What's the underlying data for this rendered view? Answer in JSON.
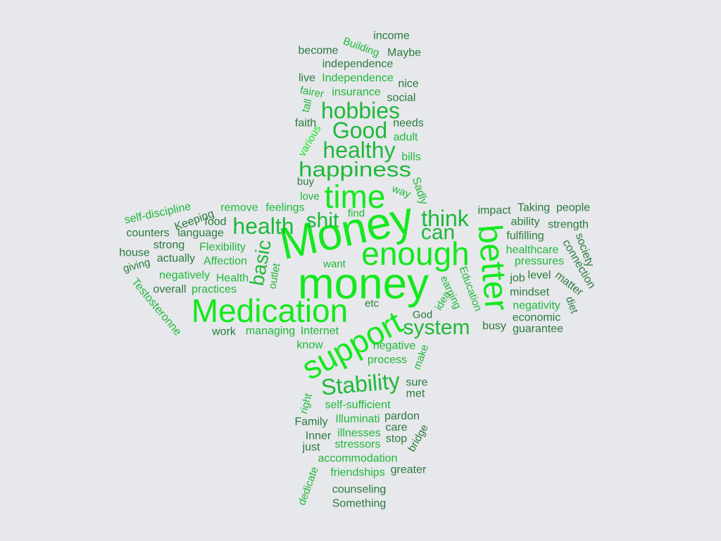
{
  "colors": {
    "background": "#e6e8eb",
    "bright_green": "#14e81e",
    "medium_green": "#1fb83a",
    "dark_green": "#2b7a3c"
  },
  "words": [
    "income",
    "Building",
    "become",
    "Maybe",
    "independence",
    "live",
    "Independence",
    "nice",
    "fairer",
    "insurance",
    "social",
    "tall",
    "hobbies",
    "faith",
    "Good",
    "needs",
    "adult",
    "various",
    "healthy",
    "bills",
    "happiness",
    "time",
    "buy",
    "Sadly",
    "love",
    "way",
    "self-discipline",
    "Keeping",
    "remove",
    "feelings",
    "Money",
    "think",
    "impact",
    "Taking",
    "people",
    "food",
    "shit",
    "find",
    "better",
    "ability",
    "strength",
    "health",
    "counters",
    "language",
    "can",
    "fulfilling",
    "strong",
    "Flexibility",
    "basic",
    "enough",
    "society",
    "house",
    "healthcare",
    "actually",
    "Affection",
    "connection",
    "giving",
    "want",
    "pressures",
    "negatively",
    "Health",
    "outlet",
    "Education",
    "job",
    "level",
    "matter",
    "money",
    "Testosteronne",
    "overall",
    "practices",
    "earning",
    "mindset",
    "Medication",
    "idea",
    "diet",
    "etc",
    "negativity",
    "God",
    "economic",
    "support",
    "system",
    "busy",
    "guarantee",
    "work",
    "managing",
    "Internet",
    "know",
    "negative",
    "make",
    "process",
    "Stability",
    "sure",
    "met",
    "right",
    "self-sufficient",
    "pardon",
    "Family",
    "Illuminati",
    "care",
    "illnesses",
    "bridge",
    "Inner",
    "stop",
    "just",
    "stressors",
    "accommodation",
    "greater",
    "friendships",
    "dedicate",
    "counseling",
    "Something"
  ]
}
